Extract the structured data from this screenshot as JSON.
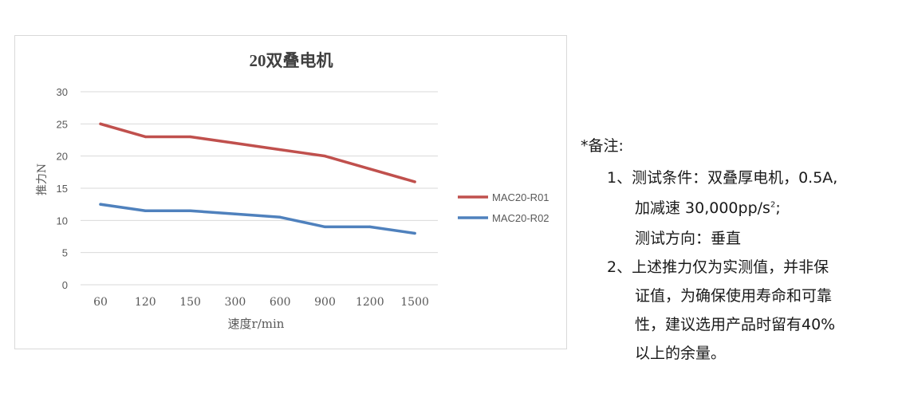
{
  "chart_data": {
    "type": "line",
    "title": "20双叠电机",
    "xlabel": "速度r/min",
    "ylabel": "推力N",
    "categories": [
      "60",
      "120",
      "150",
      "300",
      "600",
      "900",
      "1200",
      "1500"
    ],
    "ylim": [
      0,
      30
    ],
    "yticks": [
      0,
      5,
      10,
      15,
      20,
      25,
      30
    ],
    "grid": true,
    "legend_position": "right",
    "series": [
      {
        "name": "MAC20-R01",
        "color": "#c0504d",
        "values": [
          25,
          23,
          23,
          22,
          21,
          20,
          18,
          16
        ]
      },
      {
        "name": "MAC20-R02",
        "color": "#4f81bd",
        "values": [
          12.5,
          11.5,
          11.5,
          11,
          10.5,
          9,
          9,
          8
        ]
      }
    ]
  },
  "notes": {
    "heading": "*备注:",
    "item1_line1": "1、测试条件：双叠厚电机，0.5A,",
    "item1_line2": "加减速 30,000pp/s",
    "item1_line2_sup": "2",
    "item1_line2_end": ";",
    "item1_line3": "测试方向：垂直",
    "item2_line1": "2、上述推力仅为实测值，并非保",
    "item2_line2": "证值，为确保使用寿命和可靠",
    "item2_line3": "性，建议选用产品时留有40%",
    "item2_line4": "以上的余量。"
  }
}
